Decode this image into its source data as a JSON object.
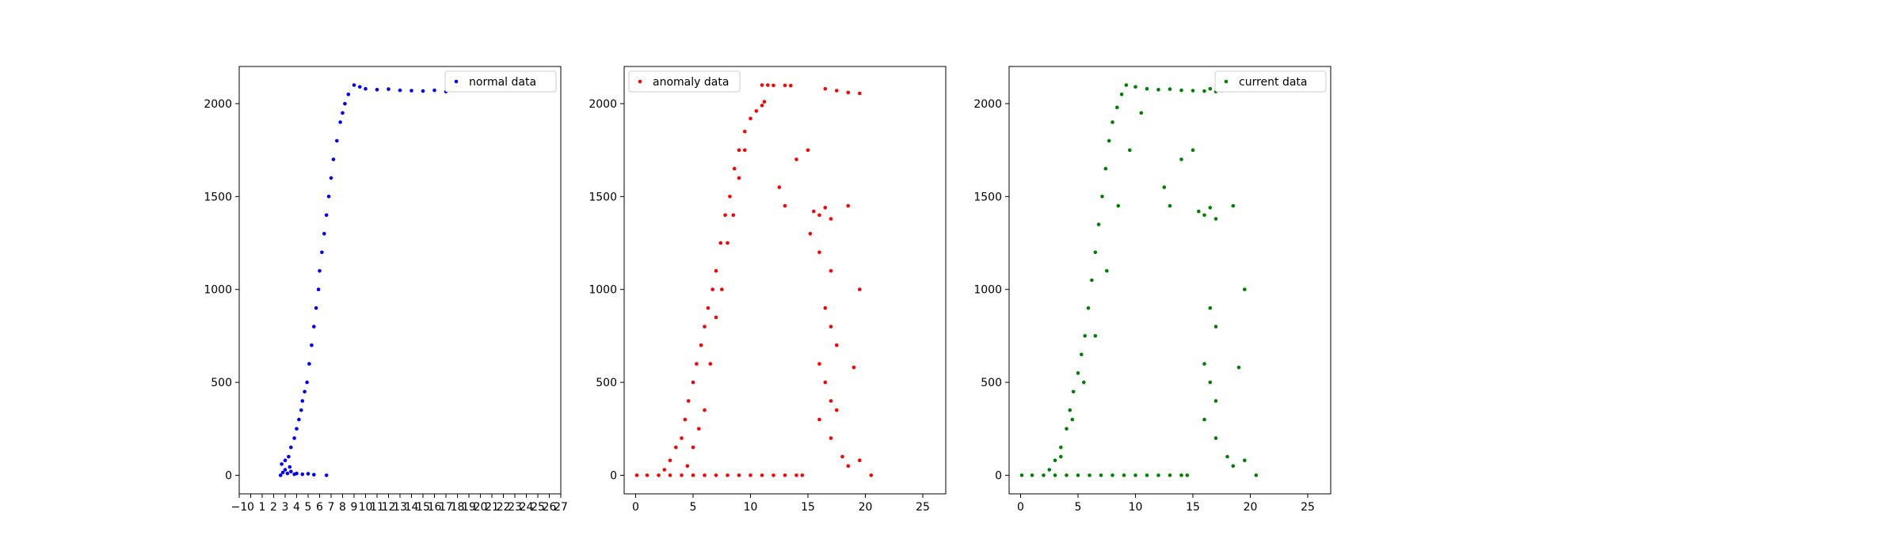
{
  "chart_data": [
    {
      "type": "scatter",
      "title": "",
      "xlabel": "",
      "ylabel": "",
      "xlim": [
        -1,
        27
      ],
      "ylim": [
        -100,
        2200
      ],
      "xticks": [
        -1,
        0,
        1,
        2,
        3,
        4,
        5,
        6,
        7,
        8,
        9,
        10,
        11,
        12,
        13,
        14,
        15,
        16,
        17,
        18,
        19,
        20,
        21,
        22,
        23,
        24,
        25,
        26,
        27
      ],
      "xtick_labels": [
        "−1",
        "0",
        "1",
        "2",
        "3",
        "4",
        "5",
        "6",
        "7",
        "8",
        "9",
        "10",
        "11",
        "12",
        "13",
        "14",
        "15",
        "16",
        "17",
        "18",
        "19",
        "20",
        "21",
        "22",
        "23",
        "24",
        "25",
        "26",
        "27"
      ],
      "yticks": [
        0,
        500,
        1000,
        1500,
        2000
      ],
      "ytick_labels": [
        "0",
        "500",
        "1000",
        "1500",
        "2000"
      ],
      "grid": false,
      "legend": {
        "position": "top-right"
      },
      "series": [
        {
          "name": "normal data",
          "color": "#0000ff",
          "points": [
            [
              2.6,
              0
            ],
            [
              2.8,
              15
            ],
            [
              3.0,
              30
            ],
            [
              3.2,
              10
            ],
            [
              3.4,
              45
            ],
            [
              2.7,
              60
            ],
            [
              3.0,
              80
            ],
            [
              3.3,
              100
            ],
            [
              3.5,
              20
            ],
            [
              3.8,
              5
            ],
            [
              4.0,
              10
            ],
            [
              4.5,
              5
            ],
            [
              5.0,
              8
            ],
            [
              5.5,
              3
            ],
            [
              6.6,
              0
            ],
            [
              3.5,
              150
            ],
            [
              3.8,
              200
            ],
            [
              4.0,
              250
            ],
            [
              4.2,
              300
            ],
            [
              4.4,
              350
            ],
            [
              4.5,
              400
            ],
            [
              4.7,
              450
            ],
            [
              4.9,
              500
            ],
            [
              5.1,
              600
            ],
            [
              5.3,
              700
            ],
            [
              5.5,
              800
            ],
            [
              5.7,
              900
            ],
            [
              5.9,
              1000
            ],
            [
              6.0,
              1100
            ],
            [
              6.2,
              1200
            ],
            [
              6.4,
              1300
            ],
            [
              6.6,
              1400
            ],
            [
              6.8,
              1500
            ],
            [
              7.0,
              1600
            ],
            [
              7.2,
              1700
            ],
            [
              7.5,
              1800
            ],
            [
              7.8,
              1900
            ],
            [
              8.0,
              1950
            ],
            [
              8.2,
              2000
            ],
            [
              8.5,
              2050
            ],
            [
              9.0,
              2100
            ],
            [
              9.5,
              2090
            ],
            [
              10.0,
              2080
            ],
            [
              11.0,
              2075
            ],
            [
              12.0,
              2078
            ],
            [
              13.0,
              2072
            ],
            [
              14.0,
              2070
            ],
            [
              15.0,
              2068
            ],
            [
              16.0,
              2072
            ],
            [
              17.0,
              2065
            ]
          ]
        }
      ]
    },
    {
      "type": "scatter",
      "title": "",
      "xlabel": "",
      "ylabel": "",
      "xlim": [
        -1,
        27
      ],
      "ylim": [
        -100,
        2200
      ],
      "xticks": [
        0,
        5,
        10,
        15,
        20,
        25
      ],
      "xtick_labels": [
        "0",
        "5",
        "10",
        "15",
        "20",
        "25"
      ],
      "yticks": [
        0,
        500,
        1000,
        1500,
        2000
      ],
      "ytick_labels": [
        "0",
        "500",
        "1000",
        "1500",
        "2000"
      ],
      "grid": false,
      "legend": {
        "position": "top-left"
      },
      "series": [
        {
          "name": "anomaly data",
          "color": "#ff0000",
          "points": [
            [
              0.1,
              0
            ],
            [
              1,
              0
            ],
            [
              2,
              0
            ],
            [
              3,
              0
            ],
            [
              4,
              0
            ],
            [
              5,
              0
            ],
            [
              6,
              0
            ],
            [
              7,
              0
            ],
            [
              8,
              0
            ],
            [
              9,
              0
            ],
            [
              10,
              0
            ],
            [
              11,
              0
            ],
            [
              12,
              0
            ],
            [
              13,
              0
            ],
            [
              14,
              0
            ],
            [
              14.5,
              0
            ],
            [
              2.5,
              30
            ],
            [
              3.0,
              80
            ],
            [
              3.5,
              150
            ],
            [
              4.0,
              200
            ],
            [
              4.3,
              300
            ],
            [
              4.6,
              400
            ],
            [
              5.0,
              500
            ],
            [
              5.3,
              600
            ],
            [
              5.7,
              700
            ],
            [
              6.0,
              800
            ],
            [
              6.3,
              900
            ],
            [
              6.7,
              1000
            ],
            [
              7.0,
              1100
            ],
            [
              7.4,
              1250
            ],
            [
              7.8,
              1400
            ],
            [
              8.2,
              1500
            ],
            [
              8.6,
              1650
            ],
            [
              9.0,
              1750
            ],
            [
              9.5,
              1850
            ],
            [
              10.0,
              1920
            ],
            [
              10.5,
              1960
            ],
            [
              11.0,
              1990
            ],
            [
              11.2,
              2010
            ],
            [
              4.5,
              50
            ],
            [
              5.0,
              150
            ],
            [
              5.5,
              250
            ],
            [
              6.0,
              350
            ],
            [
              6.5,
              600
            ],
            [
              7.0,
              850
            ],
            [
              7.5,
              1000
            ],
            [
              8.0,
              1250
            ],
            [
              8.5,
              1400
            ],
            [
              9.0,
              1600
            ],
            [
              9.5,
              1750
            ],
            [
              11.0,
              2100
            ],
            [
              11.5,
              2100
            ],
            [
              12.0,
              2098
            ],
            [
              13.0,
              2098
            ],
            [
              13.5,
              2097
            ],
            [
              16.5,
              2080
            ],
            [
              17.5,
              2070
            ],
            [
              18.5,
              2060
            ],
            [
              19.5,
              2055
            ],
            [
              15.5,
              1420
            ],
            [
              16.0,
              1400
            ],
            [
              16.5,
              1440
            ],
            [
              17.0,
              1380
            ],
            [
              15.2,
              1300
            ],
            [
              16.0,
              1200
            ],
            [
              17.0,
              1100
            ],
            [
              16.5,
              900
            ],
            [
              17.0,
              800
            ],
            [
              17.5,
              700
            ],
            [
              16.0,
              600
            ],
            [
              16.5,
              500
            ],
            [
              17.0,
              400
            ],
            [
              17.5,
              350
            ],
            [
              16.0,
              300
            ],
            [
              17.0,
              200
            ],
            [
              18.0,
              100
            ],
            [
              18.5,
              50
            ],
            [
              19.5,
              80
            ],
            [
              20.5,
              0
            ],
            [
              18.5,
              1450
            ],
            [
              19.5,
              1000
            ],
            [
              19.0,
              580
            ],
            [
              13.0,
              1450
            ],
            [
              12.5,
              1550
            ],
            [
              14.0,
              1700
            ],
            [
              15.0,
              1750
            ]
          ]
        }
      ]
    },
    {
      "type": "scatter",
      "title": "",
      "xlabel": "",
      "ylabel": "",
      "xlim": [
        -1,
        27
      ],
      "ylim": [
        -100,
        2200
      ],
      "xticks": [
        0,
        5,
        10,
        15,
        20,
        25
      ],
      "xtick_labels": [
        "0",
        "5",
        "10",
        "15",
        "20",
        "25"
      ],
      "yticks": [
        0,
        500,
        1000,
        1500,
        2000
      ],
      "ytick_labels": [
        "0",
        "500",
        "1000",
        "1500",
        "2000"
      ],
      "grid": false,
      "legend": {
        "position": "top-right"
      },
      "series": [
        {
          "name": "current data",
          "color": "#008000",
          "points": [
            [
              0.1,
              0
            ],
            [
              1,
              0
            ],
            [
              2,
              0
            ],
            [
              3,
              0
            ],
            [
              4,
              0
            ],
            [
              5,
              0
            ],
            [
              6,
              0
            ],
            [
              7,
              0
            ],
            [
              8,
              0
            ],
            [
              9,
              0
            ],
            [
              10,
              0
            ],
            [
              11,
              0
            ],
            [
              12,
              0
            ],
            [
              13,
              0
            ],
            [
              14,
              0
            ],
            [
              14.5,
              0
            ],
            [
              2.5,
              30
            ],
            [
              3.0,
              80
            ],
            [
              3.5,
              150
            ],
            [
              4.0,
              250
            ],
            [
              4.3,
              350
            ],
            [
              4.6,
              450
            ],
            [
              5.0,
              550
            ],
            [
              5.3,
              650
            ],
            [
              5.6,
              750
            ],
            [
              5.9,
              900
            ],
            [
              6.2,
              1050
            ],
            [
              6.5,
              1200
            ],
            [
              6.8,
              1350
            ],
            [
              7.1,
              1500
            ],
            [
              7.4,
              1650
            ],
            [
              7.7,
              1800
            ],
            [
              8.0,
              1900
            ],
            [
              8.4,
              1980
            ],
            [
              8.8,
              2050
            ],
            [
              9.2,
              2100
            ],
            [
              10,
              2090
            ],
            [
              11,
              2080
            ],
            [
              12,
              2075
            ],
            [
              13,
              2078
            ],
            [
              14,
              2072
            ],
            [
              15,
              2070
            ],
            [
              16,
              2068
            ],
            [
              17,
              2065
            ],
            [
              3.5,
              100
            ],
            [
              4.5,
              300
            ],
            [
              5.5,
              500
            ],
            [
              6.5,
              750
            ],
            [
              7.5,
              1100
            ],
            [
              8.5,
              1450
            ],
            [
              9.5,
              1750
            ],
            [
              10.5,
              1950
            ],
            [
              15.5,
              1420
            ],
            [
              16.0,
              1400
            ],
            [
              16.5,
              1440
            ],
            [
              17.0,
              1380
            ],
            [
              16.5,
              900
            ],
            [
              17.0,
              800
            ],
            [
              16.0,
              600
            ],
            [
              16.5,
              500
            ],
            [
              17.0,
              400
            ],
            [
              16.0,
              300
            ],
            [
              17.0,
              200
            ],
            [
              18.0,
              100
            ],
            [
              18.5,
              50
            ],
            [
              19.5,
              80
            ],
            [
              20.5,
              0
            ],
            [
              18.5,
              1450
            ],
            [
              19.5,
              1000
            ],
            [
              19.0,
              580
            ],
            [
              13.0,
              1450
            ],
            [
              12.5,
              1550
            ],
            [
              14.0,
              1700
            ],
            [
              15.0,
              1750
            ],
            [
              16.5,
              2080
            ],
            [
              17.5,
              2070
            ]
          ]
        }
      ]
    }
  ]
}
